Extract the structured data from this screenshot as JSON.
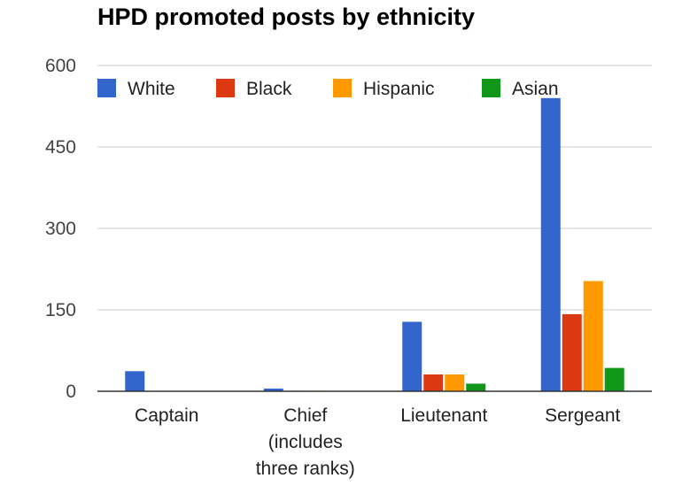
{
  "chart_data": {
    "type": "bar",
    "title": "HPD promoted posts by ethnicity",
    "xlabel": "",
    "ylabel": "",
    "categories": [
      "Captain",
      "Chief (includes three ranks)",
      "Lieutenant",
      "Sergeant"
    ],
    "category_lines": [
      [
        "Captain"
      ],
      [
        "Chief",
        "(includes",
        "three ranks)"
      ],
      [
        "Lieutenant"
      ],
      [
        "Sergeant"
      ]
    ],
    "series": [
      {
        "name": "White",
        "color": "#3366cc",
        "values": [
          37,
          5,
          128,
          540
        ]
      },
      {
        "name": "Black",
        "color": "#dc3912",
        "values": [
          0,
          1,
          31,
          142
        ]
      },
      {
        "name": "Hispanic",
        "color": "#ff9900",
        "values": [
          0,
          1,
          31,
          203
        ]
      },
      {
        "name": "Asian",
        "color": "#109618",
        "values": [
          0,
          0,
          14,
          43
        ]
      }
    ],
    "ylim": [
      0,
      600
    ],
    "yticks": [
      0,
      150,
      300,
      450,
      600
    ],
    "grid": true,
    "legend_position": "top"
  }
}
